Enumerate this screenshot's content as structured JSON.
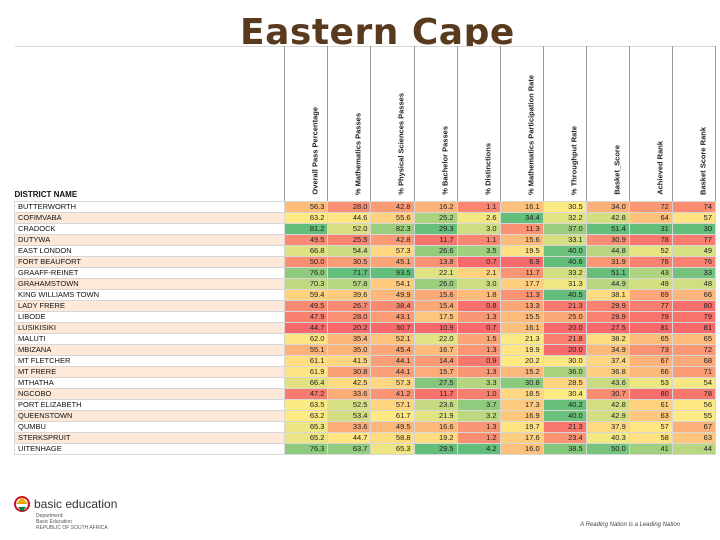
{
  "title": "Eastern Cape",
  "table": {
    "name_header": "DISTRICT NAME",
    "columns": [
      "Overall Pass Percentage",
      "% Mathematics Passes",
      "% Physical Sciences Passes",
      "% Bachelor Passes",
      "% Distinctions",
      "% Mathematics Participation Rate",
      "% Throughput Rate",
      "Basket_Score",
      "Achieved Rank",
      "Basket Score Rank"
    ],
    "rows": [
      {
        "name": "BUTTERWORTH",
        "values": [
          "56.3",
          "28.0",
          "42.8",
          "16.2",
          "1.1",
          "16.1",
          "30.5",
          "34.0",
          "72",
          "74"
        ]
      },
      {
        "name": "COFIMVABA",
        "values": [
          "63.2",
          "44.6",
          "55.6",
          "25.2",
          "2.6",
          "34.4",
          "32.2",
          "42.8",
          "64",
          "57"
        ]
      },
      {
        "name": "CRADOCK",
        "values": [
          "81.2",
          "52.0",
          "82.3",
          "29.3",
          "3.0",
          "11.3",
          "37.0",
          "51.4",
          "31",
          "30"
        ]
      },
      {
        "name": "DUTYWA",
        "values": [
          "49.5",
          "25.5",
          "42.8",
          "11.7",
          "1.1",
          "15.6",
          "33.1",
          "30.9",
          "78",
          "77"
        ]
      },
      {
        "name": "EAST LONDON",
        "values": [
          "66.8",
          "54.4",
          "57.3",
          "26.6",
          "3.5",
          "19.5",
          "40.0",
          "44.8",
          "52",
          "49"
        ]
      },
      {
        "name": "FORT BEAUFORT",
        "values": [
          "50.0",
          "30.5",
          "45.1",
          "13.8",
          "0.7",
          "6.9",
          "40.6",
          "31.9",
          "76",
          "76"
        ]
      },
      {
        "name": "GRAAFF-REINET",
        "values": [
          "76.0",
          "71.7",
          "93.5",
          "22.1",
          "2.1",
          "11.7",
          "33.2",
          "51.1",
          "43",
          "33"
        ]
      },
      {
        "name": "GRAHAMSTOWN",
        "values": [
          "70.3",
          "57.8",
          "54.1",
          "26.0",
          "3.0",
          "17.7",
          "31.3",
          "44.9",
          "49",
          "48"
        ]
      },
      {
        "name": "KING WILLIAMS TOWN",
        "values": [
          "59.4",
          "39.6",
          "49.9",
          "15.6",
          "1.8",
          "11.3",
          "40.5",
          "38.1",
          "69",
          "66"
        ]
      },
      {
        "name": "LADY FRERE",
        "values": [
          "49.5",
          "26.7",
          "38.4",
          "15.4",
          "0.8",
          "13.3",
          "21.3",
          "29.9",
          "77",
          "80"
        ]
      },
      {
        "name": "LIBODE",
        "values": [
          "47.9",
          "28.0",
          "43.1",
          "17.5",
          "1.3",
          "15.5",
          "25.0",
          "29.9",
          "79",
          "79"
        ]
      },
      {
        "name": "LUSIKISIKI",
        "values": [
          "44.7",
          "20.2",
          "30.7",
          "10.9",
          "0.7",
          "16.1",
          "20.0",
          "27.5",
          "81",
          "81"
        ]
      },
      {
        "name": "MALUTI",
        "values": [
          "62.0",
          "35.4",
          "52.1",
          "22.0",
          "1.5",
          "21.3",
          "21.8",
          "38.2",
          "65",
          "65"
        ]
      },
      {
        "name": "MBIZANA",
        "values": [
          "55.1",
          "35.0",
          "45.4",
          "16.7",
          "1.3",
          "19.9",
          "20.0",
          "34.9",
          "73",
          "72"
        ]
      },
      {
        "name": "MT FLETCHER",
        "values": [
          "61.1",
          "41.5",
          "44.1",
          "14.4",
          "0.9",
          "20.2",
          "30.0",
          "37.4",
          "67",
          "68"
        ]
      },
      {
        "name": "MT FRERE",
        "values": [
          "61.9",
          "30.8",
          "44.1",
          "15.7",
          "1.3",
          "15.2",
          "36.0",
          "36.8",
          "66",
          "71"
        ]
      },
      {
        "name": "MTHATHA",
        "values": [
          "66.4",
          "42.5",
          "57.3",
          "27.5",
          "3.3",
          "30.8",
          "28.5",
          "43.6",
          "53",
          "54"
        ]
      },
      {
        "name": "NGCOBO",
        "values": [
          "47.2",
          "33.6",
          "41.2",
          "11.7",
          "1.0",
          "18.5",
          "30.4",
          "30.7",
          "80",
          "78"
        ]
      },
      {
        "name": "PORT ELIZABETH",
        "values": [
          "63.5",
          "52.5",
          "57.1",
          "23.6",
          "3.7",
          "17.3",
          "40.2",
          "42.8",
          "61",
          "56"
        ]
      },
      {
        "name": "QUEENSTOWN",
        "values": [
          "63.2",
          "53.4",
          "61.7",
          "21.9",
          "3.2",
          "16.9",
          "40.0",
          "42.9",
          "63",
          "55"
        ]
      },
      {
        "name": "QUMBU",
        "values": [
          "65.3",
          "33.6",
          "49.5",
          "16.6",
          "1.3",
          "19.7",
          "21.3",
          "37.9",
          "57",
          "67"
        ]
      },
      {
        "name": "STERKSPRUIT",
        "values": [
          "65.2",
          "44.7",
          "58.8",
          "19.2",
          "1.2",
          "17.6",
          "23.4",
          "40.3",
          "58",
          "63"
        ]
      },
      {
        "name": "UITENHAGE",
        "values": [
          "76.3",
          "63.7",
          "65.3",
          "29.5",
          "4.2",
          "16.0",
          "38.5",
          "50.0",
          "41",
          "44"
        ]
      }
    ]
  },
  "logo": {
    "name": "basic education",
    "sub1": "Department:",
    "sub2": "Basic Education",
    "sub3": "REPUBLIC OF SOUTH AFRICA"
  },
  "footer_slogan": "A Reading Nation is a Leading Nation",
  "colors": {
    "title": "#5a3a1c",
    "high": "#63be7b",
    "mid": "#ffeb84",
    "low": "#f8696b",
    "name_highlight": "#fde9d9"
  }
}
